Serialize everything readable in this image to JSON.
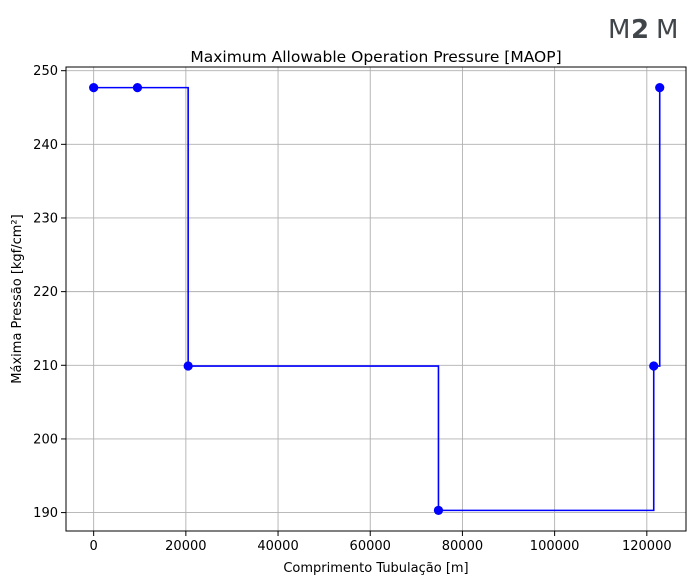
{
  "logo": {
    "left": "M",
    "middle": "2",
    "right": "M",
    "color": "#404549"
  },
  "chart_data": {
    "type": "line",
    "drawstyle": "steps-post",
    "title": "Maximum Allowable Operation Pressure [MAOP]",
    "xlabel": "Comprimento Tubulação [m]",
    "ylabel": "Máxima Pressão [kgf/cm²]",
    "xlim": [
      -6000,
      128500
    ],
    "ylim": [
      187.5,
      250.5
    ],
    "xticks": [
      0,
      20000,
      40000,
      60000,
      80000,
      100000,
      120000
    ],
    "xtick_labels": [
      "0",
      "20000",
      "40000",
      "60000",
      "80000",
      "100000",
      "120000"
    ],
    "yticks": [
      190,
      200,
      210,
      220,
      230,
      240,
      250
    ],
    "ytick_labels": [
      "190",
      "200",
      "210",
      "220",
      "230",
      "240",
      "250"
    ],
    "grid": true,
    "color": "#0000ff",
    "series": [
      {
        "x": [
          0,
          9500,
          20500,
          74800,
          121500,
          122800
        ],
        "y": [
          247.7,
          247.7,
          209.9,
          190.3,
          209.9,
          247.7
        ]
      }
    ]
  }
}
